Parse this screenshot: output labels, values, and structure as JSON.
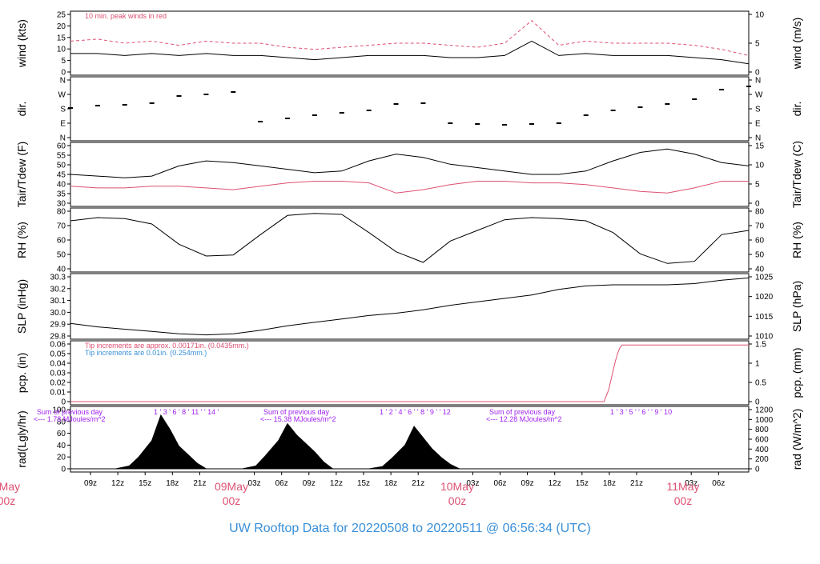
{
  "title": "UW Rooftop Data for 20220508  to  20220511 @ 06:56:34  (UTC)",
  "colors": {
    "series_main": "#000000",
    "series_red": "#dc5072",
    "note_blue": "#3a8fd8",
    "note_purple": "#a020f0",
    "title": "#3a8fd8"
  },
  "x_axis": {
    "hour_ticks": [
      "09z",
      "12z",
      "15z",
      "18z",
      "21z",
      "03z",
      "06z",
      "09z",
      "12z",
      "15z",
      "18z",
      "21z",
      "03z",
      "06z",
      "09z",
      "12z",
      "15z",
      "18z",
      "21z",
      "03z",
      "06z"
    ],
    "day_labels": [
      {
        "date": "8May",
        "hour": "00z"
      },
      {
        "date": "09May",
        "hour": "00z"
      },
      {
        "date": "10May",
        "hour": "00z"
      },
      {
        "date": "11May",
        "hour": "00z"
      }
    ]
  },
  "chart_data": [
    {
      "type": "line",
      "name": "wind",
      "ylabel_left": "wind (kts)",
      "ylabel_right": "wind (m/s)",
      "left_ticks": [
        "0",
        "5",
        "10",
        "15",
        "20",
        "25"
      ],
      "right_ticks": [
        "0",
        "5",
        "10"
      ],
      "ylim": [
        0,
        28
      ],
      "annotation": "10 min. peak winds in red",
      "x_hours": [
        0,
        6,
        12,
        18,
        24,
        30,
        36,
        42,
        48,
        54,
        60,
        66,
        72,
        78,
        84,
        90,
        96,
        102,
        108,
        114,
        120,
        126,
        132,
        138,
        144,
        150
      ],
      "series": [
        {
          "color": "#000000",
          "values": [
            9,
            9,
            8,
            9,
            8,
            9,
            8,
            8,
            7,
            6,
            7,
            8,
            8,
            8,
            7,
            7,
            8,
            15,
            8,
            9,
            8,
            8,
            8,
            7,
            6,
            4
          ]
        },
        {
          "color": "#dc5072",
          "values": [
            15,
            16,
            14,
            15,
            13,
            15,
            14,
            14,
            12,
            11,
            12,
            13,
            14,
            14,
            13,
            12,
            14,
            25,
            13,
            15,
            14,
            14,
            14,
            13,
            11,
            8
          ]
        }
      ]
    },
    {
      "type": "scatter",
      "name": "dir",
      "ylabel_left": "dir.",
      "ylabel_right": "dir.",
      "left_ticks": [
        "N",
        "E",
        "S",
        "W",
        "N"
      ],
      "right_ticks": [
        "N",
        "E",
        "S",
        "W",
        "N"
      ],
      "ylim": [
        0,
        360
      ],
      "x_hours": [
        0,
        6,
        12,
        18,
        24,
        30,
        36,
        42,
        48,
        54,
        60,
        66,
        72,
        78,
        84,
        90,
        96,
        102,
        108,
        114,
        120,
        126,
        132,
        138,
        144,
        150
      ],
      "values": [
        185,
        200,
        205,
        215,
        260,
        270,
        285,
        100,
        120,
        140,
        155,
        170,
        210,
        215,
        90,
        85,
        80,
        85,
        90,
        140,
        170,
        190,
        210,
        240,
        300,
        320
      ]
    },
    {
      "type": "line",
      "name": "temperature",
      "ylabel_left": "Tair/Tdew (F)",
      "ylabel_right": "Tair/Tdew (C)",
      "left_ticks": [
        "30",
        "35",
        "40",
        "45",
        "50",
        "55",
        "60"
      ],
      "right_ticks": [
        "0",
        "5",
        "10",
        "15"
      ],
      "ylim": [
        28,
        62
      ],
      "x_hours": [
        0,
        6,
        12,
        18,
        24,
        30,
        36,
        42,
        48,
        54,
        60,
        66,
        72,
        78,
        84,
        90,
        96,
        102,
        108,
        114,
        120,
        126,
        132,
        138,
        144,
        150
      ],
      "series": [
        {
          "color": "#000000",
          "values": [
            45,
            44,
            43,
            44,
            50,
            53,
            52,
            50,
            48,
            46,
            47,
            53,
            57,
            55,
            51,
            49,
            47,
            45,
            45,
            47,
            53,
            58,
            60,
            57,
            52,
            50
          ]
        },
        {
          "color": "#dc5072",
          "values": [
            38,
            37,
            37,
            38,
            38,
            37,
            36,
            38,
            40,
            41,
            41,
            40,
            34,
            36,
            39,
            41,
            41,
            40,
            40,
            39,
            37,
            35,
            34,
            37,
            41,
            41
          ]
        }
      ]
    },
    {
      "type": "line",
      "name": "rh",
      "ylabel_left": "RH (%)",
      "ylabel_right": "RH (%)",
      "left_ticks": [
        "40",
        "50",
        "60",
        "70",
        "80"
      ],
      "right_ticks": [
        "40",
        "50",
        "60",
        "70",
        "80"
      ],
      "ylim": [
        34,
        88
      ],
      "x_hours": [
        0,
        6,
        12,
        18,
        24,
        30,
        36,
        42,
        48,
        54,
        60,
        66,
        72,
        78,
        84,
        90,
        96,
        102,
        108,
        114,
        120,
        126,
        132,
        138,
        144,
        150
      ],
      "values": [
        79,
        82,
        81,
        76,
        57,
        46,
        47,
        66,
        84,
        86,
        85,
        68,
        50,
        40,
        60,
        70,
        80,
        82,
        81,
        79,
        68,
        48,
        39,
        41,
        66,
        70
      ]
    },
    {
      "type": "line",
      "name": "pressure",
      "ylabel_left": "SLP (inHg)",
      "ylabel_right": "SLP (hPa)",
      "left_ticks": [
        "29.8",
        "29.9",
        "30.0",
        "30.1",
        "30.2",
        "30.3"
      ],
      "right_ticks": [
        "1010",
        "1015",
        "1020",
        "1025"
      ],
      "ylim": [
        29.8,
        30.32
      ],
      "x_hours": [
        0,
        6,
        12,
        18,
        24,
        30,
        36,
        42,
        48,
        54,
        60,
        66,
        72,
        78,
        84,
        90,
        96,
        102,
        108,
        114,
        120,
        126,
        132,
        138,
        144,
        150
      ],
      "values": [
        29.91,
        29.88,
        29.86,
        29.84,
        29.82,
        29.81,
        29.82,
        29.85,
        29.89,
        29.92,
        29.95,
        29.98,
        30.0,
        30.03,
        30.07,
        30.1,
        30.13,
        30.16,
        30.21,
        30.24,
        30.25,
        30.25,
        30.25,
        30.26,
        30.29,
        30.31
      ]
    },
    {
      "type": "line",
      "name": "precipitation",
      "ylabel_left": "pcp. (in)",
      "ylabel_right": "pcp. (mm)",
      "left_ticks": [
        "0",
        "0.01",
        "0.02",
        "0.03",
        "0.04",
        "0.05",
        "0.06"
      ],
      "right_ticks": [
        "0",
        "0.5",
        "1",
        "1.5"
      ],
      "ylim": [
        0,
        0.06
      ],
      "annotation_1": "Tip increments are approx. 0.00171in. (0.0435mm.)",
      "annotation_2": "Tip increments are 0.01in. (0.254mm.)",
      "x_hours": [
        0,
        118,
        119,
        119.5,
        120,
        120.5,
        121,
        121.5,
        122,
        150
      ],
      "values": [
        0,
        0,
        0.012,
        0.022,
        0.032,
        0.042,
        0.05,
        0.056,
        0.059,
        0.059
      ]
    },
    {
      "type": "area",
      "name": "radiation",
      "ylabel_left": "rad(Lgly/hr)",
      "ylabel_right": "rad (W/m^2)",
      "left_ticks": [
        "0",
        "20",
        "40",
        "60",
        "80",
        "100"
      ],
      "right_ticks": [
        "0",
        "200",
        "400",
        "600",
        "800",
        "1000",
        "1200"
      ],
      "ylim": [
        0,
        105
      ],
      "day_notes": [
        {
          "sum_label": "Sum of previous day",
          "value_label": "<--- 1.78 MJoules/m^2",
          "hours": "1 ' 3 ' 6 ' 8 ' 11 ' ' 14 '"
        },
        {
          "sum_label": "Sum of previous day",
          "value_label": "<--- 15.38 MJoules/m^2",
          "hours": "1 ' 2 ' 4 ' 6 ' ' 8 ' 9 ' ' 12"
        },
        {
          "sum_label": "Sum of previous day",
          "value_label": "<--- 12.28 MJoules/m^2",
          "hours": "1 ' 3 ' 5 ' ' 6 ' ' 9 ' 10"
        }
      ],
      "x_hours": [
        0,
        10,
        13,
        15,
        18,
        20,
        22,
        24,
        26,
        28,
        30,
        38,
        41,
        43,
        46,
        48,
        50,
        52,
        54,
        56,
        58,
        66,
        69,
        71,
        74,
        76,
        78,
        80,
        82,
        84,
        86,
        150
      ],
      "values": [
        0,
        0,
        5,
        20,
        50,
        95,
        70,
        40,
        25,
        10,
        0,
        0,
        5,
        22,
        50,
        80,
        60,
        45,
        30,
        12,
        0,
        0,
        4,
        18,
        42,
        75,
        55,
        35,
        20,
        8,
        0,
        0
      ]
    }
  ]
}
